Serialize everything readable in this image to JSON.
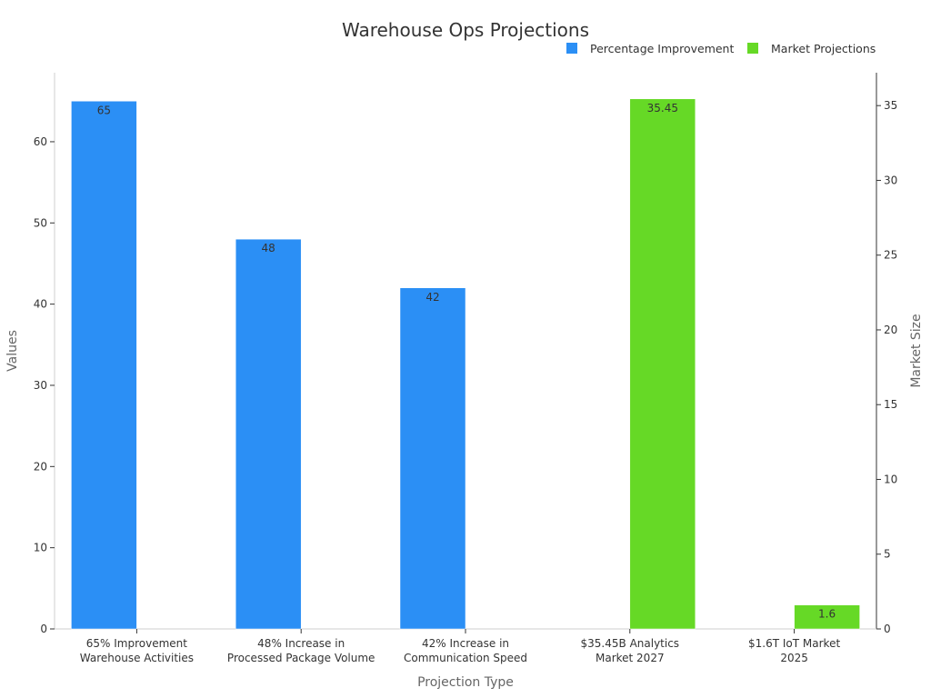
{
  "chart_data": {
    "type": "bar",
    "title": "Warehouse Ops Projections",
    "xlabel": "Projection Type",
    "ylabel": "Values",
    "y2label": "Market Size",
    "categories": [
      [
        "65% Improvement",
        "Warehouse Activities"
      ],
      [
        "48% Increase in",
        "Processed Package Volume"
      ],
      [
        "42% Increase in",
        "Communication Speed"
      ],
      [
        "$35.45B Analytics",
        "Market 2027"
      ],
      [
        "$1.6T IoT Market",
        "2025"
      ]
    ],
    "series": [
      {
        "name": "Percentage Improvement",
        "color": "#2b8ff5",
        "axis": "left",
        "values": [
          65,
          48,
          42,
          null,
          null
        ],
        "labels": [
          "65",
          "48",
          "42",
          null,
          null
        ]
      },
      {
        "name": "Market Projections",
        "color": "#66d926",
        "axis": "right",
        "values": [
          null,
          null,
          null,
          35.45,
          1.6
        ],
        "labels": [
          null,
          null,
          null,
          "35.45",
          "1.6"
        ]
      }
    ],
    "ylim": [
      0,
      68.5
    ],
    "y2lim": [
      0,
      37.2
    ],
    "yticks": [
      0,
      10,
      20,
      30,
      40,
      50,
      60
    ],
    "y2ticks": [
      0,
      5,
      10,
      15,
      20,
      25,
      30,
      35
    ],
    "legend_position": "top-right",
    "grid": false
  }
}
